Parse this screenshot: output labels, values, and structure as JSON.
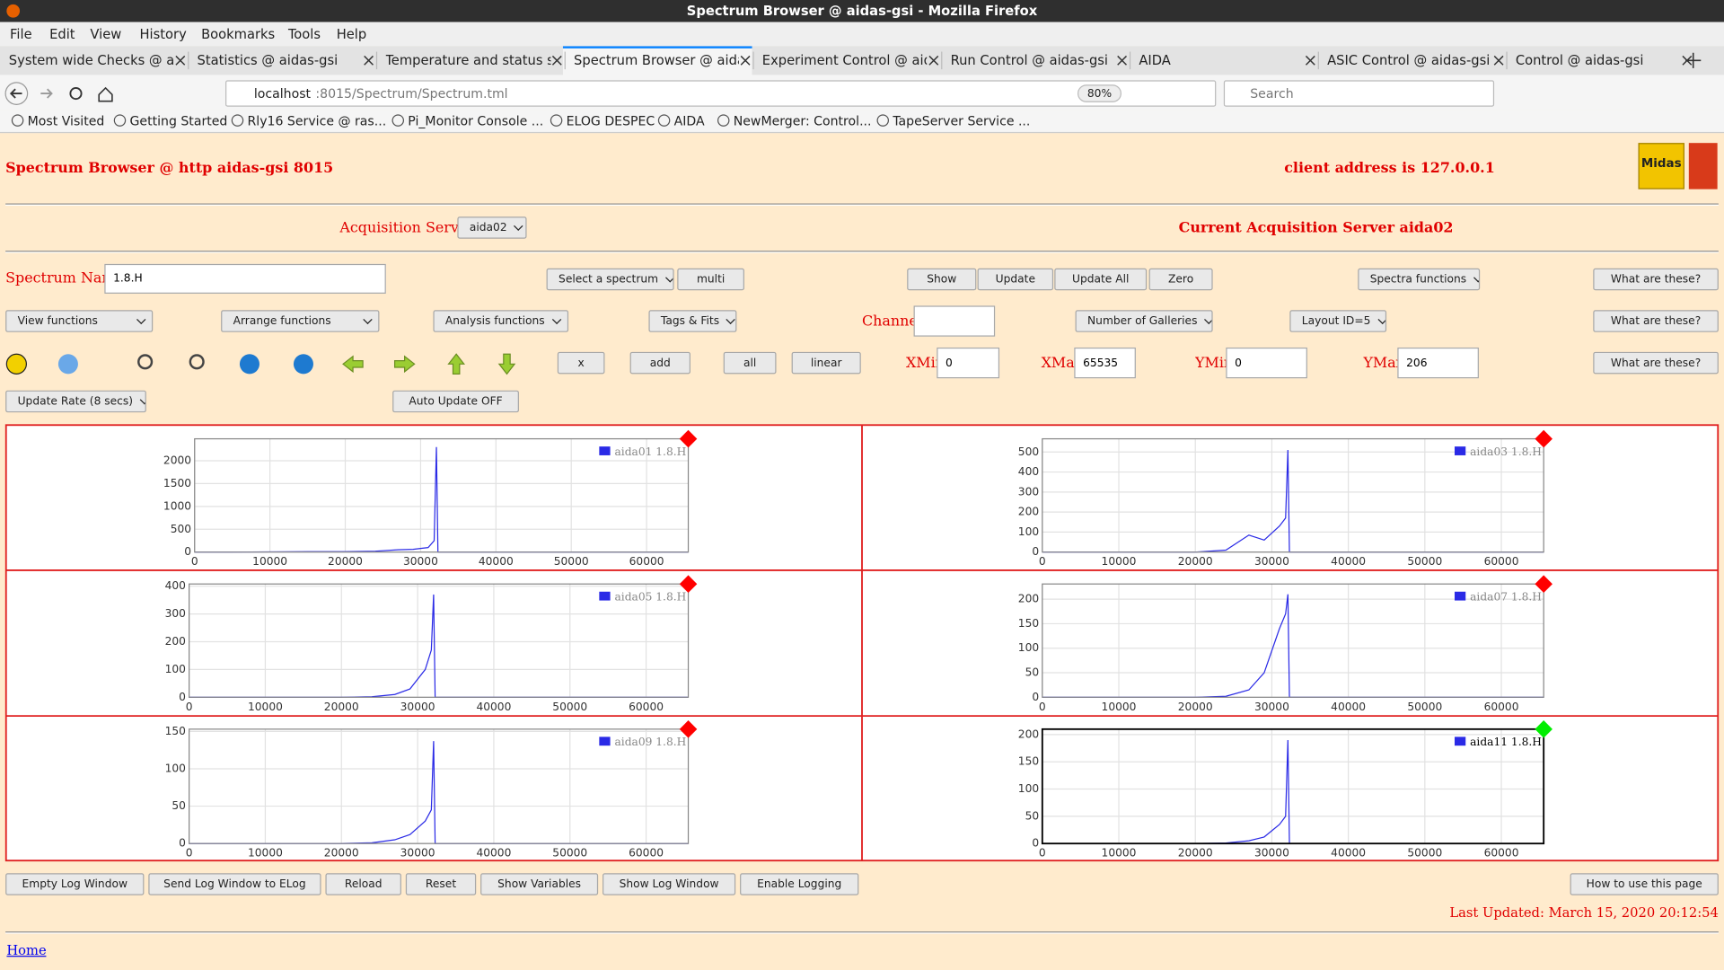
{
  "browser": {
    "window_title": "Spectrum Browser @ aidas-gsi - Mozilla Firefox",
    "menu": [
      "File",
      "Edit",
      "View",
      "History",
      "Bookmarks",
      "Tools",
      "Help"
    ],
    "tabs": [
      "System wide Checks @ ai",
      "Statistics @ aidas-gsi",
      "Temperature and status sc",
      "Spectrum Browser @ aida",
      "Experiment Control @ aid",
      "Run Control @ aidas-gsi",
      "AIDA",
      "ASIC Control @ aidas-gsi",
      "Control @ aidas-gsi"
    ],
    "url_host": "localhost",
    "url_rest": ":8015/Spectrum/Spectrum.tml",
    "zoom": "80%",
    "search": "Search",
    "bookmarks": [
      "Most Visited",
      "Getting Started",
      "Rly16 Service @ ras...",
      "Pi_Monitor Console ...",
      "ELOG DESPEC",
      "AIDA",
      "NewMerger: Control...",
      "TapeServer Service ..."
    ]
  },
  "page": {
    "title": "Spectrum Browser @ http aidas-gsi 8015",
    "client": "client address is 127.0.0.1",
    "logo": "Midas",
    "acq_label": "Acquisition Servers",
    "acq_select": "aida02",
    "acq_current": "Current Acquisition Server aida02",
    "spectrum_label": "Spectrum Name:",
    "spectrum_name": "1.8.H",
    "row1": [
      "Select a spectrum",
      "multi",
      "Show",
      "Update",
      "Update All",
      "Zero",
      "Spectra functions",
      "What are these?"
    ],
    "row2": [
      "View functions",
      "Arrange functions",
      "Analysis functions",
      "Tags & Fits",
      "Channel:",
      "Number of Galleries",
      "Layout ID=5",
      "What are these?"
    ],
    "row3": [
      "x",
      "add",
      "all",
      "linear",
      "What are these?"
    ],
    "xmin_label": "XMin",
    "xmin": "0",
    "xmax_label": "XMax",
    "xmax": "65535",
    "ymin_label": "YMin",
    "ymin": "0",
    "ymax_label": "YMax",
    "ymax": "206",
    "update_rate": "Update Rate (8 secs)",
    "auto_update": "Auto Update OFF",
    "bottom_buttons": [
      "Empty Log Window",
      "Send Log Window to ELog",
      "Reload",
      "Reset",
      "Show Variables",
      "Show Log Window",
      "Enable Logging",
      "How to use this page"
    ],
    "last_updated": "Last Updated: March 15, 2020 20:12:54",
    "home": "Home"
  },
  "chart_data": [
    {
      "type": "line",
      "x": [
        0,
        5000,
        10000,
        15000,
        20000,
        24000,
        27000,
        29000,
        31000,
        31800,
        32100,
        32300,
        32500,
        40000,
        50000,
        60000,
        65535
      ],
      "series": [
        {
          "name": "aida01 1.8.H",
          "color": "#2a2ae6",
          "values": [
            0,
            0,
            5,
            10,
            10,
            20,
            50,
            60,
            100,
            250,
            2300,
            0,
            0,
            0,
            0,
            0,
            0
          ]
        }
      ],
      "xlim": [
        0,
        65535
      ],
      "xticks": [
        0,
        10000,
        20000,
        30000,
        40000,
        50000,
        60000
      ],
      "ylim": [
        0,
        2480
      ],
      "yticks": [
        0,
        500,
        1000,
        1500,
        2000
      ],
      "grid": true,
      "marker_color": "#ff0000",
      "frame_color": "#888888",
      "legend_text_color": "#888888"
    },
    {
      "type": "line",
      "x": [
        0,
        5000,
        10000,
        15000,
        20000,
        24000,
        27000,
        29000,
        31000,
        31800,
        32100,
        32300,
        32500,
        40000,
        50000,
        60000,
        65535
      ],
      "series": [
        {
          "name": "aida03 1.8.H",
          "color": "#2a2ae6",
          "values": [
            0,
            0,
            0,
            0,
            0,
            10,
            85,
            60,
            130,
            170,
            510,
            0,
            0,
            0,
            0,
            0,
            0
          ]
        }
      ],
      "xlim": [
        0,
        65535
      ],
      "xticks": [
        0,
        10000,
        20000,
        30000,
        40000,
        50000,
        60000
      ],
      "ylim": [
        0,
        566
      ],
      "yticks": [
        0,
        100,
        200,
        300,
        400,
        500
      ],
      "grid": true,
      "marker_color": "#ff0000",
      "frame_color": "#888888",
      "legend_text_color": "#888888"
    },
    {
      "type": "line",
      "x": [
        0,
        5000,
        10000,
        15000,
        20000,
        24000,
        27000,
        29000,
        31000,
        31800,
        32100,
        32300,
        32500,
        40000,
        50000,
        60000,
        65535
      ],
      "series": [
        {
          "name": "aida05 1.8.H",
          "color": "#2a2ae6",
          "values": [
            0,
            0,
            0,
            0,
            0,
            2,
            10,
            30,
            100,
            170,
            370,
            0,
            0,
            0,
            0,
            0,
            0
          ]
        }
      ],
      "xlim": [
        0,
        65535
      ],
      "xticks": [
        0,
        10000,
        20000,
        30000,
        40000,
        50000,
        60000
      ],
      "ylim": [
        0,
        408
      ],
      "yticks": [
        0,
        100,
        200,
        300,
        400
      ],
      "grid": true,
      "marker_color": "#ff0000",
      "frame_color": "#888888",
      "legend_text_color": "#888888"
    },
    {
      "type": "line",
      "x": [
        0,
        5000,
        10000,
        15000,
        20000,
        24000,
        27000,
        29000,
        31000,
        31800,
        32100,
        32300,
        32500,
        40000,
        50000,
        60000,
        65535
      ],
      "series": [
        {
          "name": "aida07 1.8.H",
          "color": "#2a2ae6",
          "values": [
            0,
            0,
            0,
            0,
            0,
            2,
            15,
            50,
            140,
            170,
            210,
            0,
            0,
            0,
            0,
            0,
            0
          ]
        }
      ],
      "xlim": [
        0,
        65535
      ],
      "xticks": [
        0,
        10000,
        20000,
        30000,
        40000,
        50000,
        60000
      ],
      "ylim": [
        0,
        231
      ],
      "yticks": [
        0,
        50,
        100,
        150,
        200
      ],
      "grid": true,
      "marker_color": "#ff0000",
      "frame_color": "#888888",
      "legend_text_color": "#888888"
    },
    {
      "type": "line",
      "x": [
        0,
        5000,
        10000,
        15000,
        20000,
        24000,
        27000,
        29000,
        31000,
        31800,
        32100,
        32300,
        32500,
        40000,
        50000,
        60000,
        65535
      ],
      "series": [
        {
          "name": "aida09 1.8.H",
          "color": "#2a2ae6",
          "values": [
            0,
            0,
            0,
            0,
            0,
            1,
            5,
            12,
            30,
            45,
            137,
            0,
            0,
            0,
            0,
            0,
            0
          ]
        }
      ],
      "xlim": [
        0,
        65535
      ],
      "xticks": [
        0,
        10000,
        20000,
        30000,
        40000,
        50000,
        60000
      ],
      "ylim": [
        0,
        153
      ],
      "yticks": [
        0,
        50,
        100,
        150
      ],
      "grid": true,
      "marker_color": "#ff0000",
      "frame_color": "#888888",
      "legend_text_color": "#888888"
    },
    {
      "type": "line",
      "x": [
        0,
        5000,
        10000,
        15000,
        20000,
        24000,
        27000,
        29000,
        31000,
        31800,
        32100,
        32300,
        32500,
        40000,
        50000,
        60000,
        65535
      ],
      "series": [
        {
          "name": "aida11 1.8.H",
          "color": "#2a2ae6",
          "values": [
            0,
            0,
            0,
            0,
            0,
            1,
            5,
            12,
            35,
            50,
            190,
            0,
            0,
            0,
            0,
            0,
            0
          ]
        }
      ],
      "xlim": [
        0,
        65535
      ],
      "xticks": [
        0,
        10000,
        20000,
        30000,
        40000,
        50000,
        60000
      ],
      "ylim": [
        0,
        210
      ],
      "yticks": [
        0,
        50,
        100,
        150,
        200
      ],
      "grid": true,
      "marker_color": "#00ee00",
      "frame_color": "#000000",
      "legend_text_color": "#000000"
    }
  ]
}
